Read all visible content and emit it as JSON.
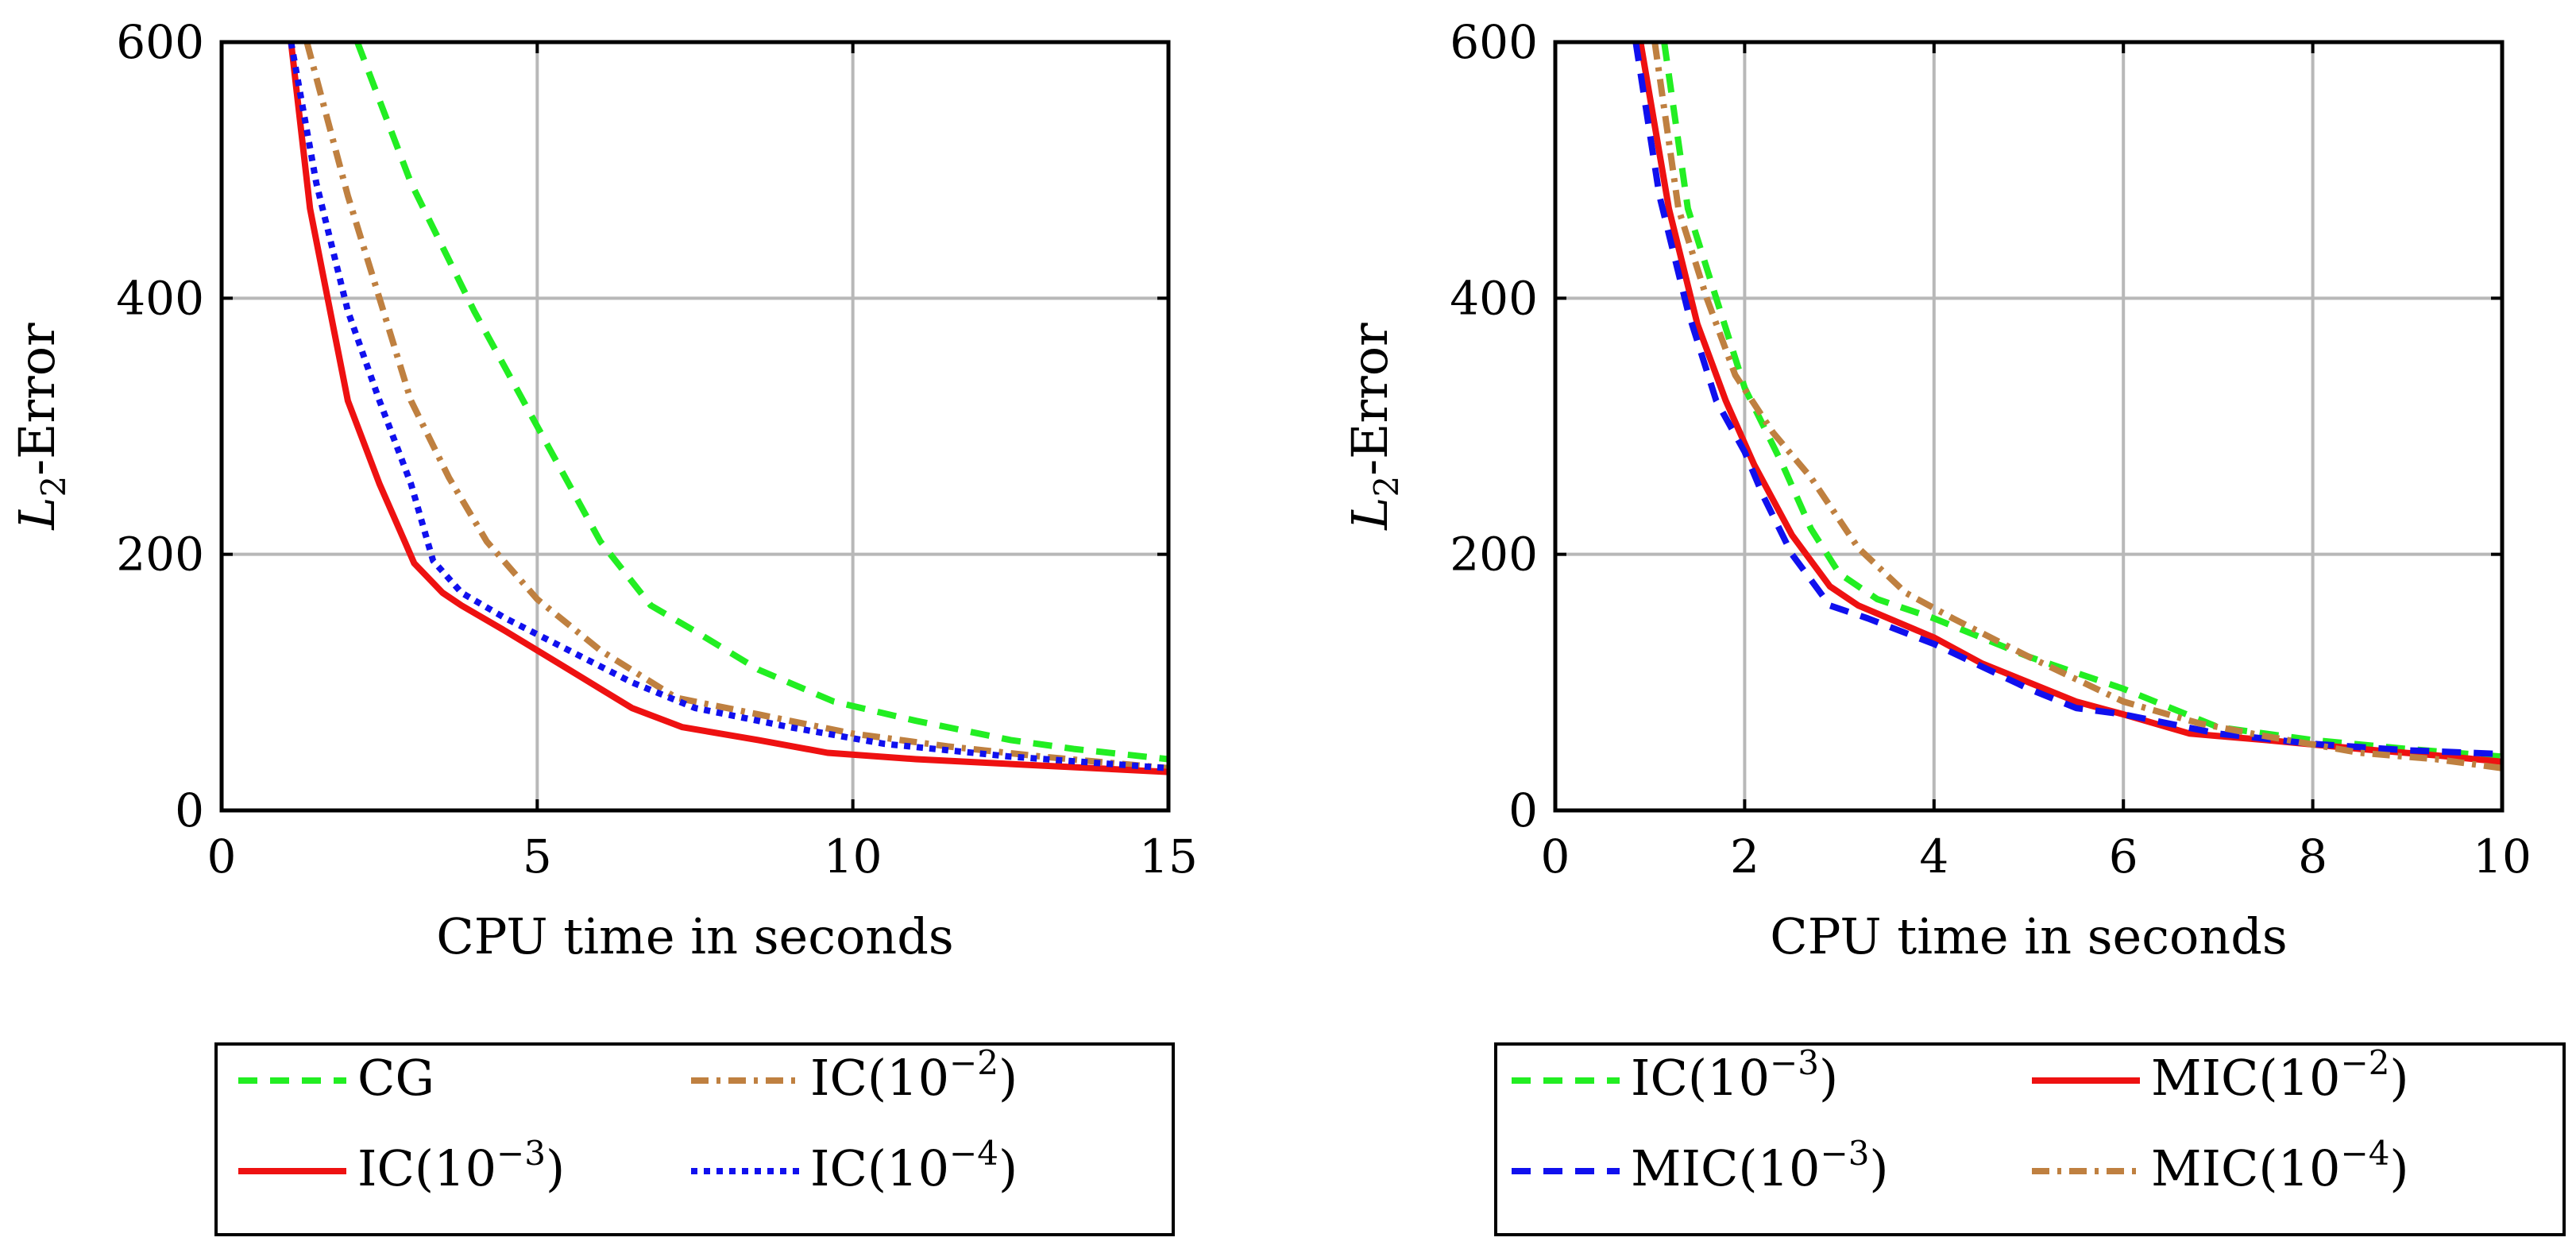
{
  "colors": {
    "green": "#22ee22",
    "red": "#ee1111",
    "brown": "#bf8040",
    "blue": "#1010ee"
  },
  "chart_data": [
    {
      "type": "line",
      "xlabel": "CPU time in seconds",
      "ylabel_main": "L",
      "ylabel_sub": "2",
      "ylabel_rest": "-Error",
      "xlim": [
        0,
        15
      ],
      "ylim": [
        0,
        600
      ],
      "xticks": [
        0,
        5,
        10,
        15
      ],
      "yticks": [
        0,
        200,
        400,
        600
      ],
      "grid": true,
      "legend_position": "below",
      "series": [
        {
          "name": "CG",
          "label_base": "CG",
          "label_exp": "",
          "label_suffix": "",
          "color_key": "green",
          "style": "dashed",
          "x": [
            2.15,
            3,
            4,
            5,
            6,
            6.8,
            7.5,
            8.5,
            9.7,
            11,
            12.5,
            13.5,
            15
          ],
          "y": [
            600,
            490,
            390,
            300,
            210,
            160,
            140,
            110,
            85,
            70,
            55,
            48,
            40
          ]
        },
        {
          "name": "IC(10^-2)",
          "label_base": "IC(10",
          "label_exp": "−2",
          "label_suffix": ")",
          "color_key": "brown",
          "style": "dashdot",
          "x": [
            1.35,
            2,
            2.5,
            3,
            3.6,
            4.2,
            5,
            6,
            7.2,
            8.5,
            10,
            11.5,
            13,
            15
          ],
          "y": [
            600,
            480,
            400,
            320,
            260,
            210,
            165,
            125,
            88,
            75,
            60,
            50,
            42,
            33
          ]
        },
        {
          "name": "IC(10^-3)",
          "label_base": "IC(10",
          "label_exp": "−3",
          "label_suffix": ")",
          "color_key": "red",
          "style": "solid",
          "x": [
            1.1,
            1.4,
            1.6,
            2,
            2.5,
            2.9,
            3.05,
            3.5,
            3.8,
            4.5,
            5.5,
            6.5,
            7.3,
            8.5,
            9.6,
            11,
            13,
            15
          ],
          "y": [
            600,
            470,
            420,
            320,
            255,
            210,
            193,
            170,
            160,
            140,
            110,
            80,
            65,
            55,
            45,
            40,
            35,
            30
          ]
        },
        {
          "name": "IC(10^-4)",
          "label_base": "IC(10",
          "label_exp": "−4",
          "label_suffix": ")",
          "color_key": "blue",
          "style": "dotted",
          "x": [
            1.1,
            1.5,
            2,
            2.5,
            3,
            3.35,
            3.8,
            4.5,
            5.5,
            6.5,
            7.5,
            9,
            10.5,
            12.5,
            15
          ],
          "y": [
            600,
            490,
            390,
            320,
            255,
            195,
            170,
            150,
            125,
            100,
            80,
            65,
            52,
            42,
            33
          ]
        }
      ]
    },
    {
      "type": "line",
      "xlabel": "CPU time in seconds",
      "ylabel_main": "L",
      "ylabel_sub": "2",
      "ylabel_rest": "-Error",
      "xlim": [
        0,
        10
      ],
      "ylim": [
        0,
        600
      ],
      "xticks": [
        0,
        2,
        4,
        6,
        8,
        10
      ],
      "yticks": [
        0,
        200,
        400,
        600
      ],
      "grid": true,
      "legend_position": "below",
      "series": [
        {
          "name": "IC(10^-3)",
          "label_base": "IC(10",
          "label_exp": "−3",
          "label_suffix": ")",
          "color_key": "green",
          "style": "dashed",
          "x": [
            1.15,
            1.4,
            1.7,
            2,
            2.4,
            2.7,
            3,
            3.4,
            4,
            5,
            6,
            7,
            8,
            9,
            10
          ],
          "y": [
            600,
            470,
            400,
            330,
            270,
            220,
            185,
            165,
            150,
            120,
            95,
            65,
            55,
            48,
            42
          ]
        },
        {
          "name": "MIC(10^-2)",
          "label_base": "MIC(10",
          "label_exp": "−2",
          "label_suffix": ")",
          "color_key": "red",
          "style": "solid",
          "x": [
            0.9,
            1.2,
            1.5,
            1.8,
            2.1,
            2.5,
            2.9,
            3.2,
            4,
            4.5,
            5,
            5.5,
            6,
            6.7,
            7.5,
            8.5,
            9.3,
            10
          ],
          "y": [
            600,
            470,
            380,
            320,
            270,
            215,
            175,
            160,
            135,
            115,
            100,
            85,
            75,
            60,
            55,
            48,
            43,
            38
          ]
        },
        {
          "name": "MIC(10^-3)",
          "label_base": "MIC(10",
          "label_exp": "−3",
          "label_suffix": ")",
          "color_key": "blue",
          "style": "dashed",
          "x": [
            0.85,
            1.1,
            1.4,
            1.7,
            2,
            2.2,
            2.5,
            2.9,
            3.3,
            4,
            5,
            5.5,
            6,
            7,
            8,
            9,
            10
          ],
          "y": [
            600,
            480,
            390,
            320,
            280,
            245,
            200,
            160,
            150,
            130,
            95,
            80,
            75,
            60,
            52,
            47,
            44
          ]
        },
        {
          "name": "MIC(10^-4)",
          "label_base": "MIC(10",
          "label_exp": "−4",
          "label_suffix": ")",
          "color_key": "brown",
          "style": "dashdot",
          "x": [
            1.05,
            1.3,
            1.6,
            1.9,
            2.3,
            2.7,
            3.2,
            3.7,
            4.2,
            5,
            6,
            6.8,
            7.5,
            8.5,
            9.3,
            10
          ],
          "y": [
            600,
            470,
            400,
            340,
            295,
            260,
            205,
            170,
            150,
            120,
            85,
            68,
            58,
            45,
            40,
            33
          ]
        }
      ]
    }
  ]
}
